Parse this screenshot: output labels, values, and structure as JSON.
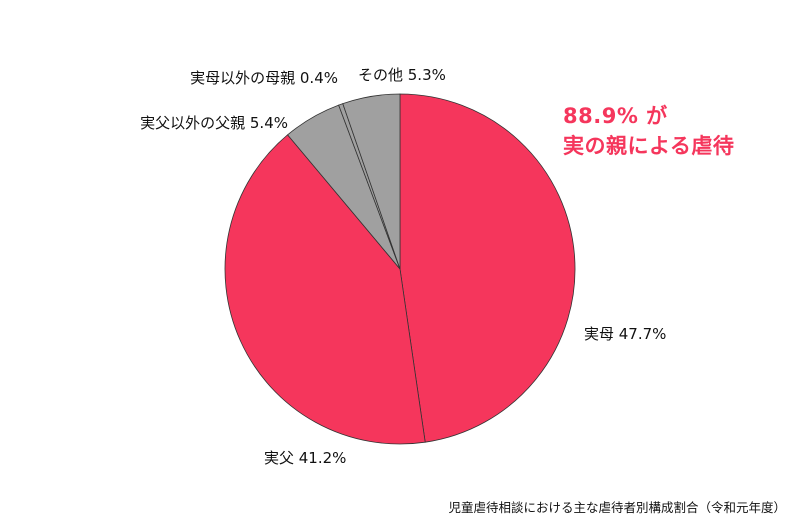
{
  "chart_data": {
    "type": "pie",
    "start": "top",
    "direction": "clockwise",
    "slices": [
      {
        "label": "実母",
        "value": 47.7,
        "text": "実母 47.7%",
        "color": "#f5365c"
      },
      {
        "label": "実父",
        "value": 41.2,
        "text": "実父 41.2%",
        "color": "#f5365c"
      },
      {
        "label": "実父以外の父親",
        "value": 5.4,
        "text": "実父以外の父親 5.4%",
        "color": "#a0a0a0"
      },
      {
        "label": "実母以外の母親",
        "value": 0.4,
        "text": "実母以外の母親 0.4%",
        "color": "#a0a0a0"
      },
      {
        "label": "その他",
        "value": 5.3,
        "text": "その他 5.3%",
        "color": "#a0a0a0"
      }
    ],
    "annotation": {
      "line1": "88.9% が",
      "line2": "実の親による虐待",
      "color": "#f5365c"
    },
    "caption": "児童虐待相談における主な虐待者別構成割合（令和元年度）"
  }
}
